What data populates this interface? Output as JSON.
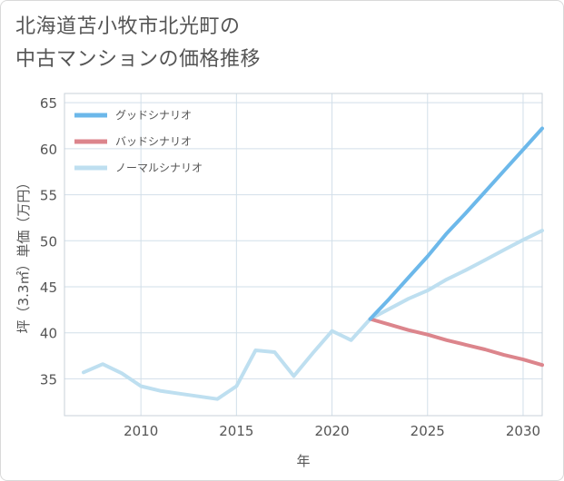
{
  "title": {
    "line1": "北海道苫小牧市北光町の",
    "line2": "中古マンションの価格推移"
  },
  "colors": {
    "good": "#6cb8ea",
    "bad": "#dc858c",
    "normal": "#bedff0",
    "grid": "#d2dfe9",
    "text": "#555555"
  },
  "chart_data": {
    "type": "line",
    "title": "北海道苫小牧市北光町の中古マンションの価格推移",
    "xlabel": "年",
    "ylabel": "坪（3.3㎡）単価（万円）",
    "xlim": [
      2006,
      2031
    ],
    "ylim": [
      31,
      66
    ],
    "x_ticks": [
      2010,
      2015,
      2020,
      2025,
      2030
    ],
    "y_ticks": [
      35,
      40,
      45,
      50,
      55,
      60,
      65
    ],
    "legend_position": "top-left",
    "series": [
      {
        "name": "グッドシナリオ",
        "key": "good",
        "x": [
          2022,
          2023,
          2024,
          2025,
          2026,
          2027,
          2028,
          2029,
          2030,
          2031
        ],
        "values": [
          41.5,
          43.7,
          46.0,
          48.3,
          50.8,
          53.0,
          55.3,
          57.6,
          59.9,
          62.2
        ]
      },
      {
        "name": "バッドシナリオ",
        "key": "bad",
        "x": [
          2022,
          2023,
          2024,
          2025,
          2026,
          2027,
          2028,
          2029,
          2030,
          2031
        ],
        "values": [
          41.5,
          40.9,
          40.3,
          39.8,
          39.2,
          38.7,
          38.2,
          37.6,
          37.1,
          36.5
        ]
      },
      {
        "name": "ノーマルシナリオ",
        "key": "normal",
        "x": [
          2007,
          2008,
          2009,
          2010,
          2011,
          2012,
          2013,
          2014,
          2015,
          2016,
          2017,
          2018,
          2019,
          2020,
          2021,
          2022,
          2023,
          2024,
          2025,
          2026,
          2027,
          2028,
          2029,
          2030,
          2031
        ],
        "values": [
          35.7,
          36.6,
          35.6,
          34.2,
          33.7,
          33.4,
          33.1,
          32.8,
          34.2,
          38.1,
          37.9,
          35.3,
          37.8,
          40.2,
          39.2,
          41.5,
          42.6,
          43.7,
          44.6,
          45.8,
          46.8,
          47.9,
          49.0,
          50.1,
          51.1
        ]
      }
    ]
  }
}
